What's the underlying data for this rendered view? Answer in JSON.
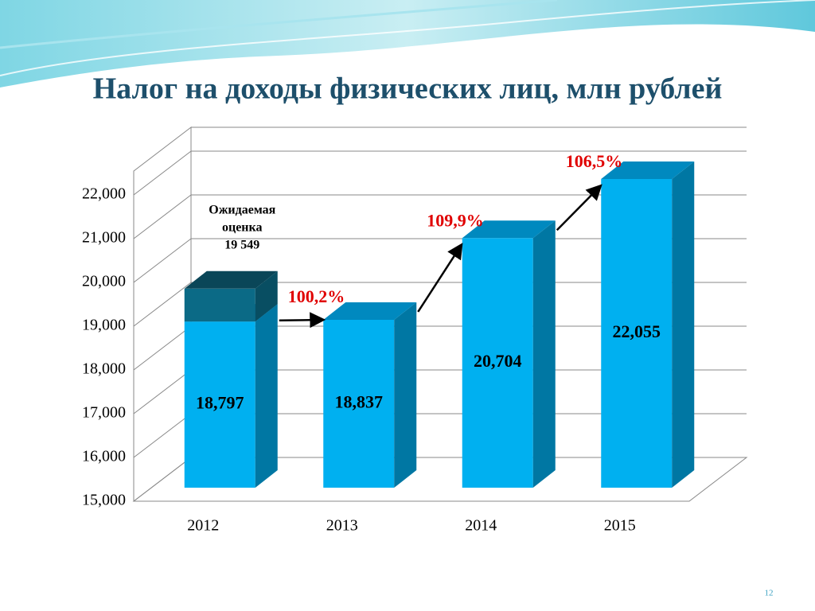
{
  "chart_data": {
    "type": "bar3d",
    "title": "Налог на доходы физических лиц, млн рублей",
    "categories": [
      "2012",
      "2013",
      "2014",
      "2015"
    ],
    "values": [
      18797,
      18837,
      20704,
      22055
    ],
    "value_labels": [
      "18,797",
      "18,837",
      "20,704",
      "22,055"
    ],
    "color": "#00b0f0",
    "ylim": [
      15000,
      22000
    ],
    "yticks": [
      {
        "value": 15000,
        "label": "15,000"
      },
      {
        "value": 16000,
        "label": "16,000"
      },
      {
        "value": 17000,
        "label": "17,000"
      },
      {
        "value": 18000,
        "label": "18,000"
      },
      {
        "value": 19000,
        "label": "19,000"
      },
      {
        "value": 20000,
        "label": "20,000"
      },
      {
        "value": 21000,
        "label": "21,000"
      },
      {
        "value": 22000,
        "label": "22,000"
      }
    ],
    "grid": true,
    "estimate": {
      "lines": [
        "Ожидаемая",
        "оценка"
      ],
      "value": 19549,
      "label": "19 549",
      "color": "#0b6a86"
    },
    "growth": [
      {
        "value": 100.2,
        "label": "100,2%"
      },
      {
        "value": 109.9,
        "label": "109,9%"
      },
      {
        "value": 106.5,
        "label": "106,5%"
      }
    ],
    "page_number": "12"
  }
}
